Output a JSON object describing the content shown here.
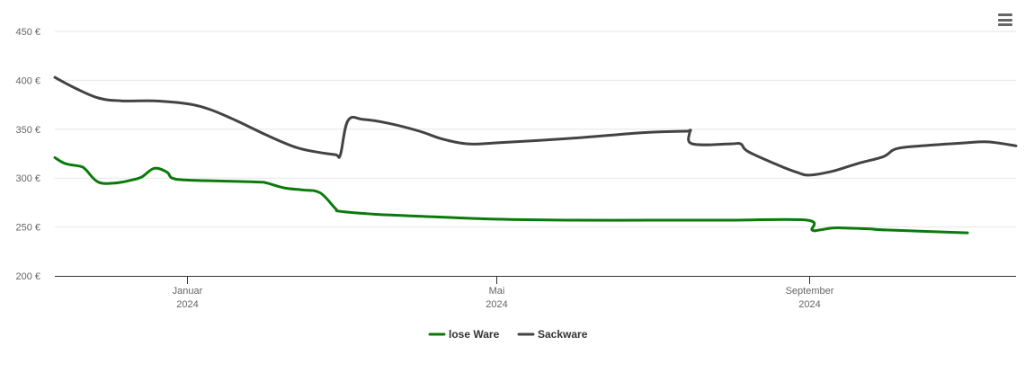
{
  "menu": {
    "icon": "hamburger-menu-icon"
  },
  "chart_data": {
    "type": "line",
    "title": "",
    "xlabel": "",
    "ylabel": "",
    "ylim": [
      200,
      450
    ],
    "xlim": [
      "2023-11-10",
      "2024-11-02"
    ],
    "y_ticks": [
      {
        "value": 200,
        "label": "200 €"
      },
      {
        "value": 250,
        "label": "250 €"
      },
      {
        "value": 300,
        "label": "300 €"
      },
      {
        "value": 350,
        "label": "350 €"
      },
      {
        "value": 400,
        "label": "400 €"
      },
      {
        "value": 450,
        "label": "450 €"
      }
    ],
    "x_ticks": [
      {
        "date": "2024-01-01",
        "month": "Januar",
        "year": "2024"
      },
      {
        "date": "2024-05-01",
        "month": "Mai",
        "year": "2024"
      },
      {
        "date": "2024-09-01",
        "month": "September",
        "year": "2024"
      }
    ],
    "grid": true,
    "legend_position": "bottom-center",
    "series": [
      {
        "name": "lose Ware",
        "color": "#0a7a0a",
        "points": [
          [
            "2023-11-10",
            321
          ],
          [
            "2023-11-14",
            315
          ],
          [
            "2023-11-20",
            312
          ],
          [
            "2023-11-22",
            309
          ],
          [
            "2023-11-27",
            296
          ],
          [
            "2023-12-04",
            295
          ],
          [
            "2023-12-10",
            298
          ],
          [
            "2023-12-14",
            301
          ],
          [
            "2023-12-19",
            310
          ],
          [
            "2023-12-24",
            306
          ],
          [
            "2023-12-26",
            300
          ],
          [
            "2024-01-01",
            298
          ],
          [
            "2024-01-15",
            297
          ],
          [
            "2024-01-29",
            296
          ],
          [
            "2024-02-01",
            295
          ],
          [
            "2024-02-08",
            290
          ],
          [
            "2024-02-15",
            288
          ],
          [
            "2024-02-22",
            285
          ],
          [
            "2024-02-28",
            269
          ],
          [
            "2024-03-01",
            266
          ],
          [
            "2024-03-15",
            263
          ],
          [
            "2024-04-01",
            261
          ],
          [
            "2024-05-01",
            258
          ],
          [
            "2024-06-01",
            257
          ],
          [
            "2024-07-01",
            257
          ],
          [
            "2024-08-01",
            257
          ],
          [
            "2024-08-31",
            257
          ],
          [
            "2024-09-02",
            247
          ],
          [
            "2024-09-05",
            247
          ],
          [
            "2024-09-10",
            249
          ],
          [
            "2024-09-15",
            249
          ],
          [
            "2024-09-25",
            248
          ],
          [
            "2024-10-01",
            247
          ],
          [
            "2024-11-02",
            244
          ]
        ]
      },
      {
        "name": "Sackware",
        "color": "#434343",
        "points": [
          [
            "2023-11-10",
            403
          ],
          [
            "2023-11-18",
            392
          ],
          [
            "2023-11-27",
            382
          ],
          [
            "2023-12-06",
            379
          ],
          [
            "2023-12-19",
            379
          ],
          [
            "2024-01-01",
            376
          ],
          [
            "2024-01-10",
            370
          ],
          [
            "2024-01-20",
            359
          ],
          [
            "2024-02-01",
            344
          ],
          [
            "2024-02-12",
            332
          ],
          [
            "2024-02-20",
            327
          ],
          [
            "2024-02-28",
            324
          ],
          [
            "2024-03-01",
            324
          ],
          [
            "2024-03-04",
            359
          ],
          [
            "2024-03-10",
            360
          ],
          [
            "2024-03-20",
            356
          ],
          [
            "2024-04-01",
            348
          ],
          [
            "2024-04-10",
            340
          ],
          [
            "2024-04-20",
            335
          ],
          [
            "2024-05-01",
            336
          ],
          [
            "2024-06-01",
            341
          ],
          [
            "2024-06-20",
            345
          ],
          [
            "2024-07-01",
            347
          ],
          [
            "2024-07-15",
            348
          ],
          [
            "2024-07-16",
            348
          ],
          [
            "2024-07-17",
            335
          ],
          [
            "2024-08-01",
            335
          ],
          [
            "2024-08-05",
            335
          ],
          [
            "2024-08-08",
            327
          ],
          [
            "2024-08-20",
            313
          ],
          [
            "2024-08-27",
            306
          ],
          [
            "2024-09-01",
            303
          ],
          [
            "2024-09-10",
            307
          ],
          [
            "2024-09-20",
            315
          ],
          [
            "2024-09-30",
            322
          ],
          [
            "2024-10-05",
            330
          ],
          [
            "2024-10-15",
            333
          ],
          [
            "2024-11-01",
            336
          ],
          [
            "2024-11-10",
            337
          ],
          [
            "2024-11-21",
            333
          ]
        ]
      }
    ]
  }
}
